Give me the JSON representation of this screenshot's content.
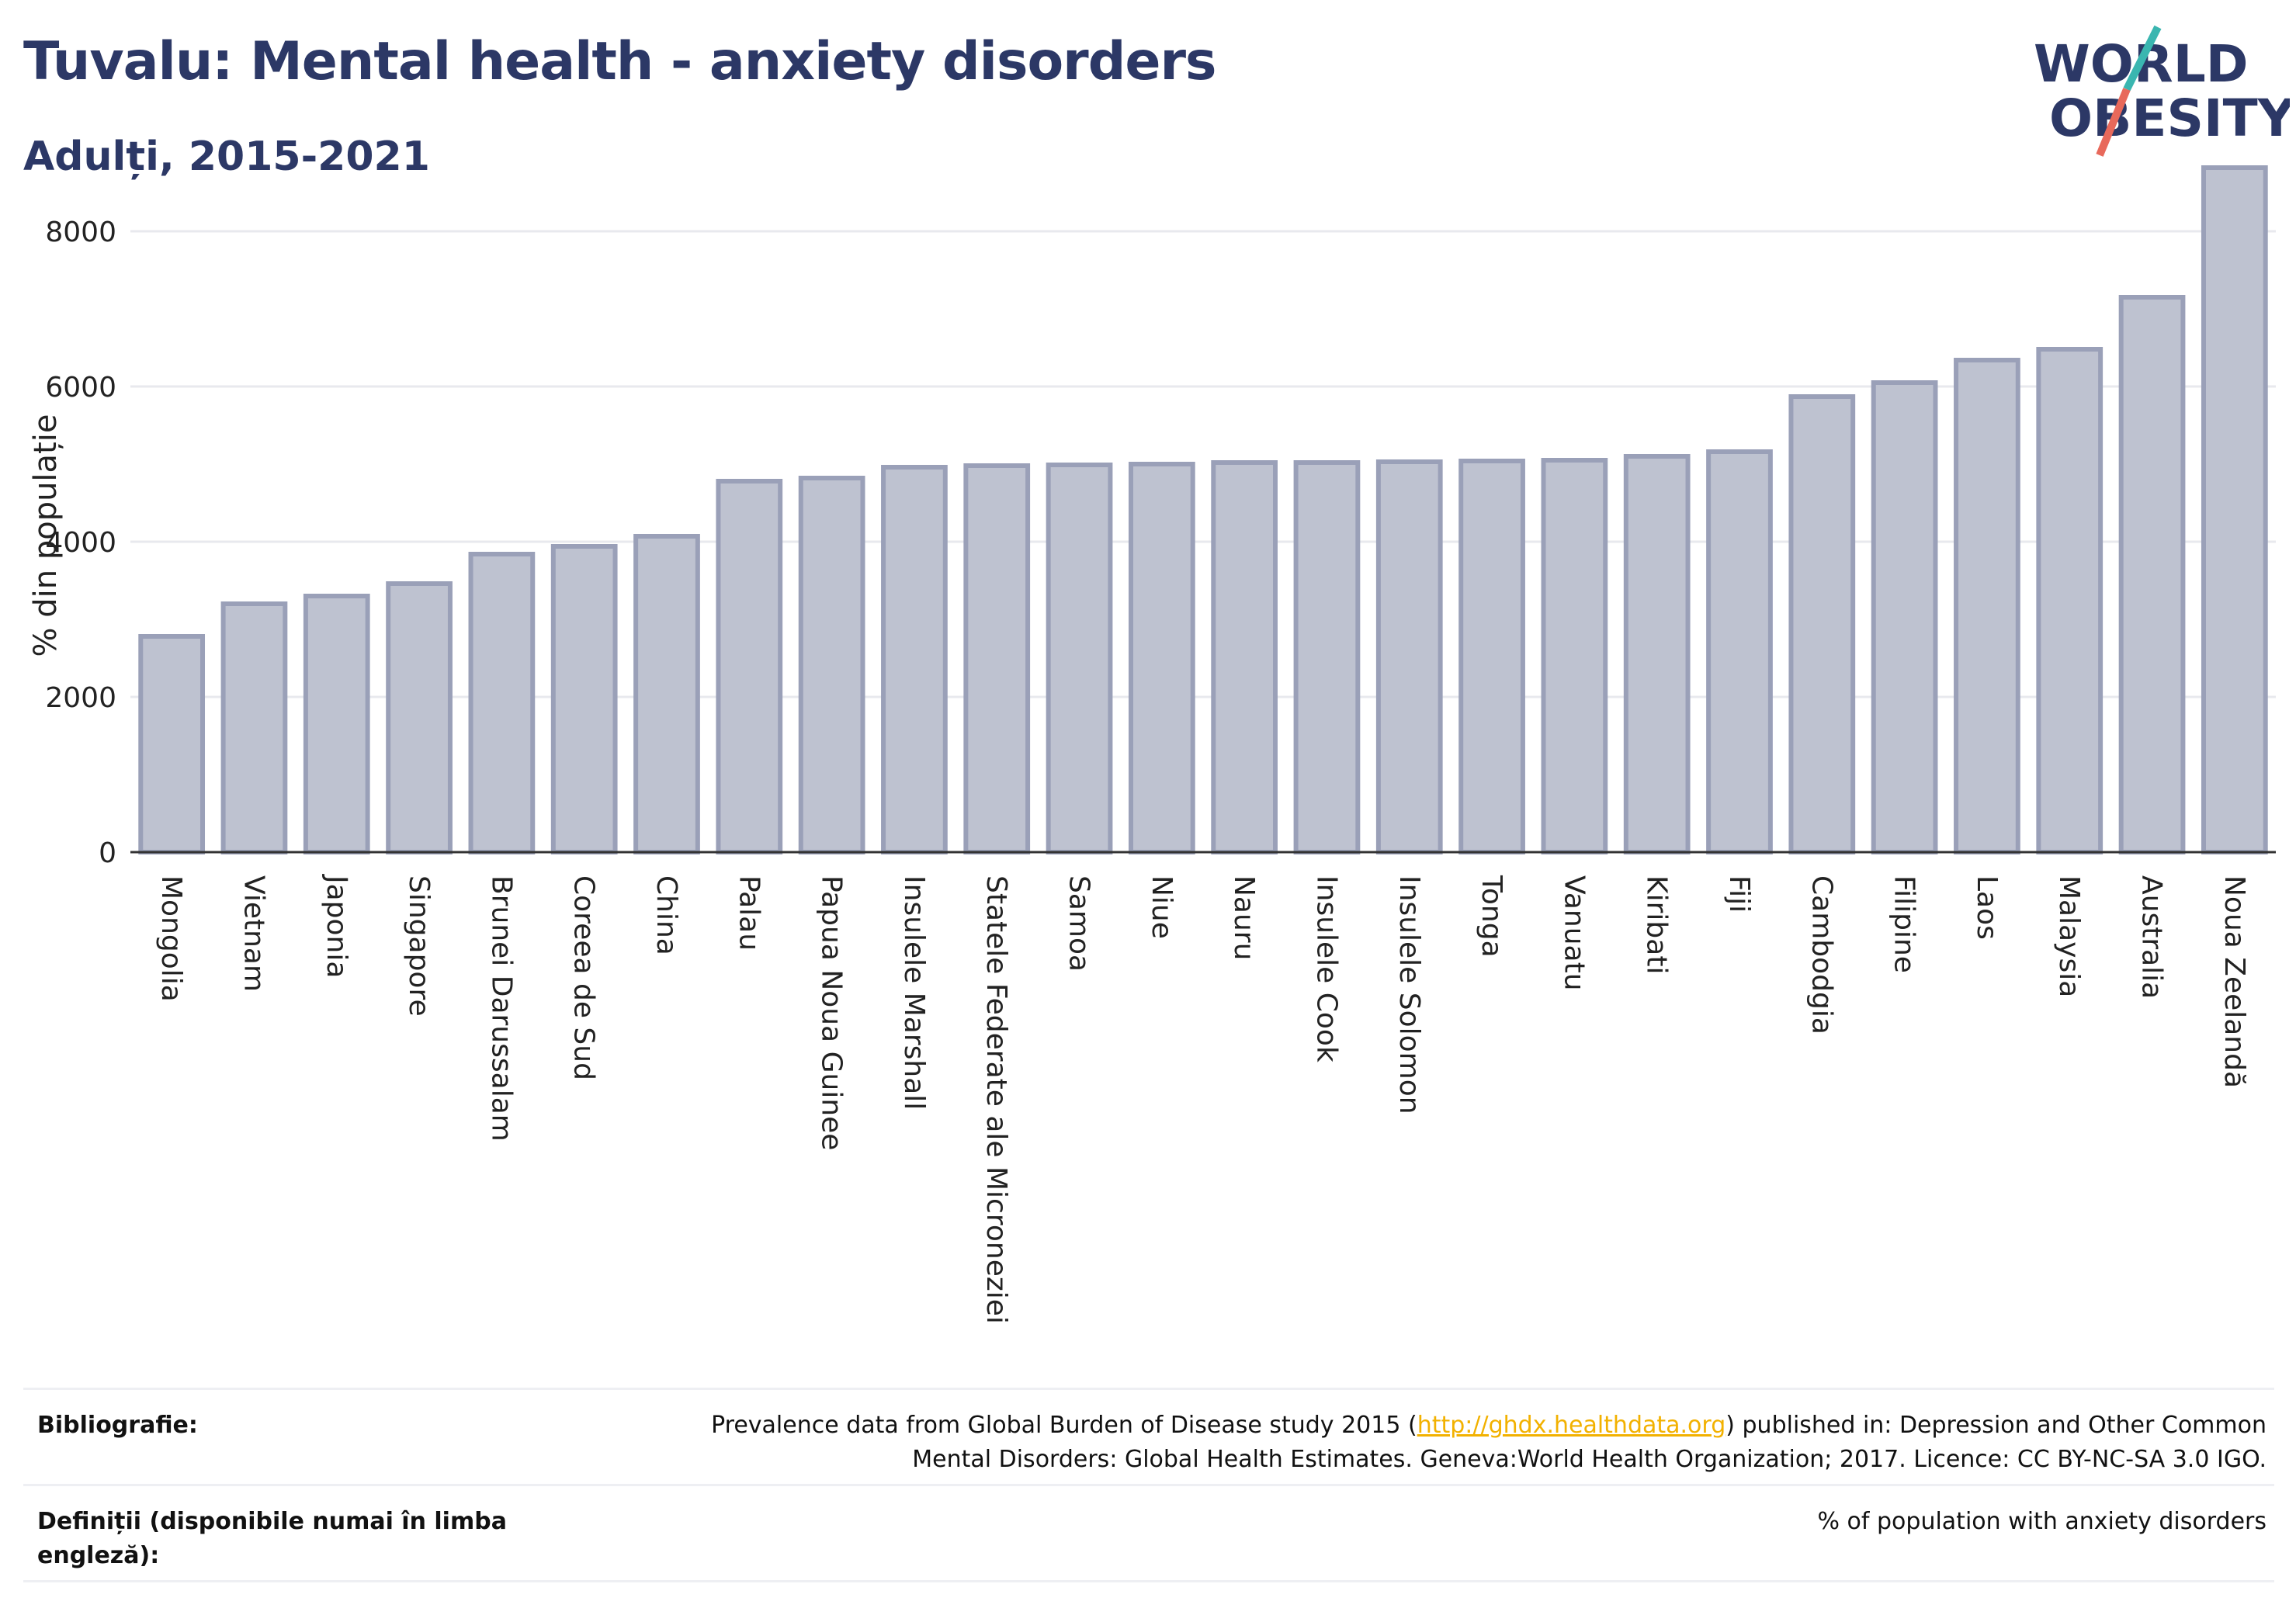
{
  "header": {
    "title": "Tuvalu: Mental health - anxiety disorders",
    "subtitle": "Adulți, 2015-2021"
  },
  "logo": {
    "line1": "WORLD",
    "line2": "OBESITY",
    "colors": {
      "text": "#2c3866",
      "slash_teal": "#3ab6b0",
      "slash_red": "#e8695b"
    }
  },
  "chart_data": {
    "type": "bar",
    "categories": [
      "Mongolia",
      "Vietnam",
      "Japonia",
      "Singapore",
      "Brunei Darussalam",
      "Coreea de Sud",
      "China",
      "Palau",
      "Papua Noua Guinee",
      "Insulele Marshall",
      "Statele Federate ale Microneziei",
      "Samoa",
      "Niue",
      "Nauru",
      "Insulele Cook",
      "Insulele Solomon",
      "Tonga",
      "Vanuatu",
      "Kiribati",
      "Fiji",
      "Cambodgia",
      "Filipine",
      "Laos",
      "Malaysia",
      "Australia",
      "Noua Zeelandă"
    ],
    "values": [
      2780,
      3200,
      3300,
      3460,
      3840,
      3940,
      4070,
      4780,
      4820,
      4960,
      4980,
      4990,
      5000,
      5020,
      5020,
      5030,
      5040,
      5050,
      5100,
      5160,
      5870,
      6050,
      6340,
      6480,
      7150,
      8820
    ],
    "ylabel": "% din populație",
    "yticks": [
      0,
      2000,
      4000,
      6000,
      8000
    ],
    "ylim": [
      0,
      9000
    ],
    "grid": true,
    "colors": {
      "bar_fill": "#bec2d0",
      "bar_stroke": "#9aa0b8",
      "axis": "#333333",
      "grid": "#e8e9ee"
    }
  },
  "footer": {
    "bibliography_label": "Bibliografie:",
    "bibliography_text_pre": "Prevalence data from Global Burden of Disease study 2015 (",
    "bibliography_link": "http://ghdx.healthdata.org",
    "bibliography_text_post": ") published in: Depression and Other Common",
    "bibliography_text_line2": "Mental Disorders: Global Health Estimates. Geneva:World Health Organization; 2017. Licence: CC BY-NC-SA 3.0 IGO.",
    "definitions_label": "Definiții (disponibile numai în limba engleză):",
    "definitions_text": "% of population with anxiety disorders"
  }
}
